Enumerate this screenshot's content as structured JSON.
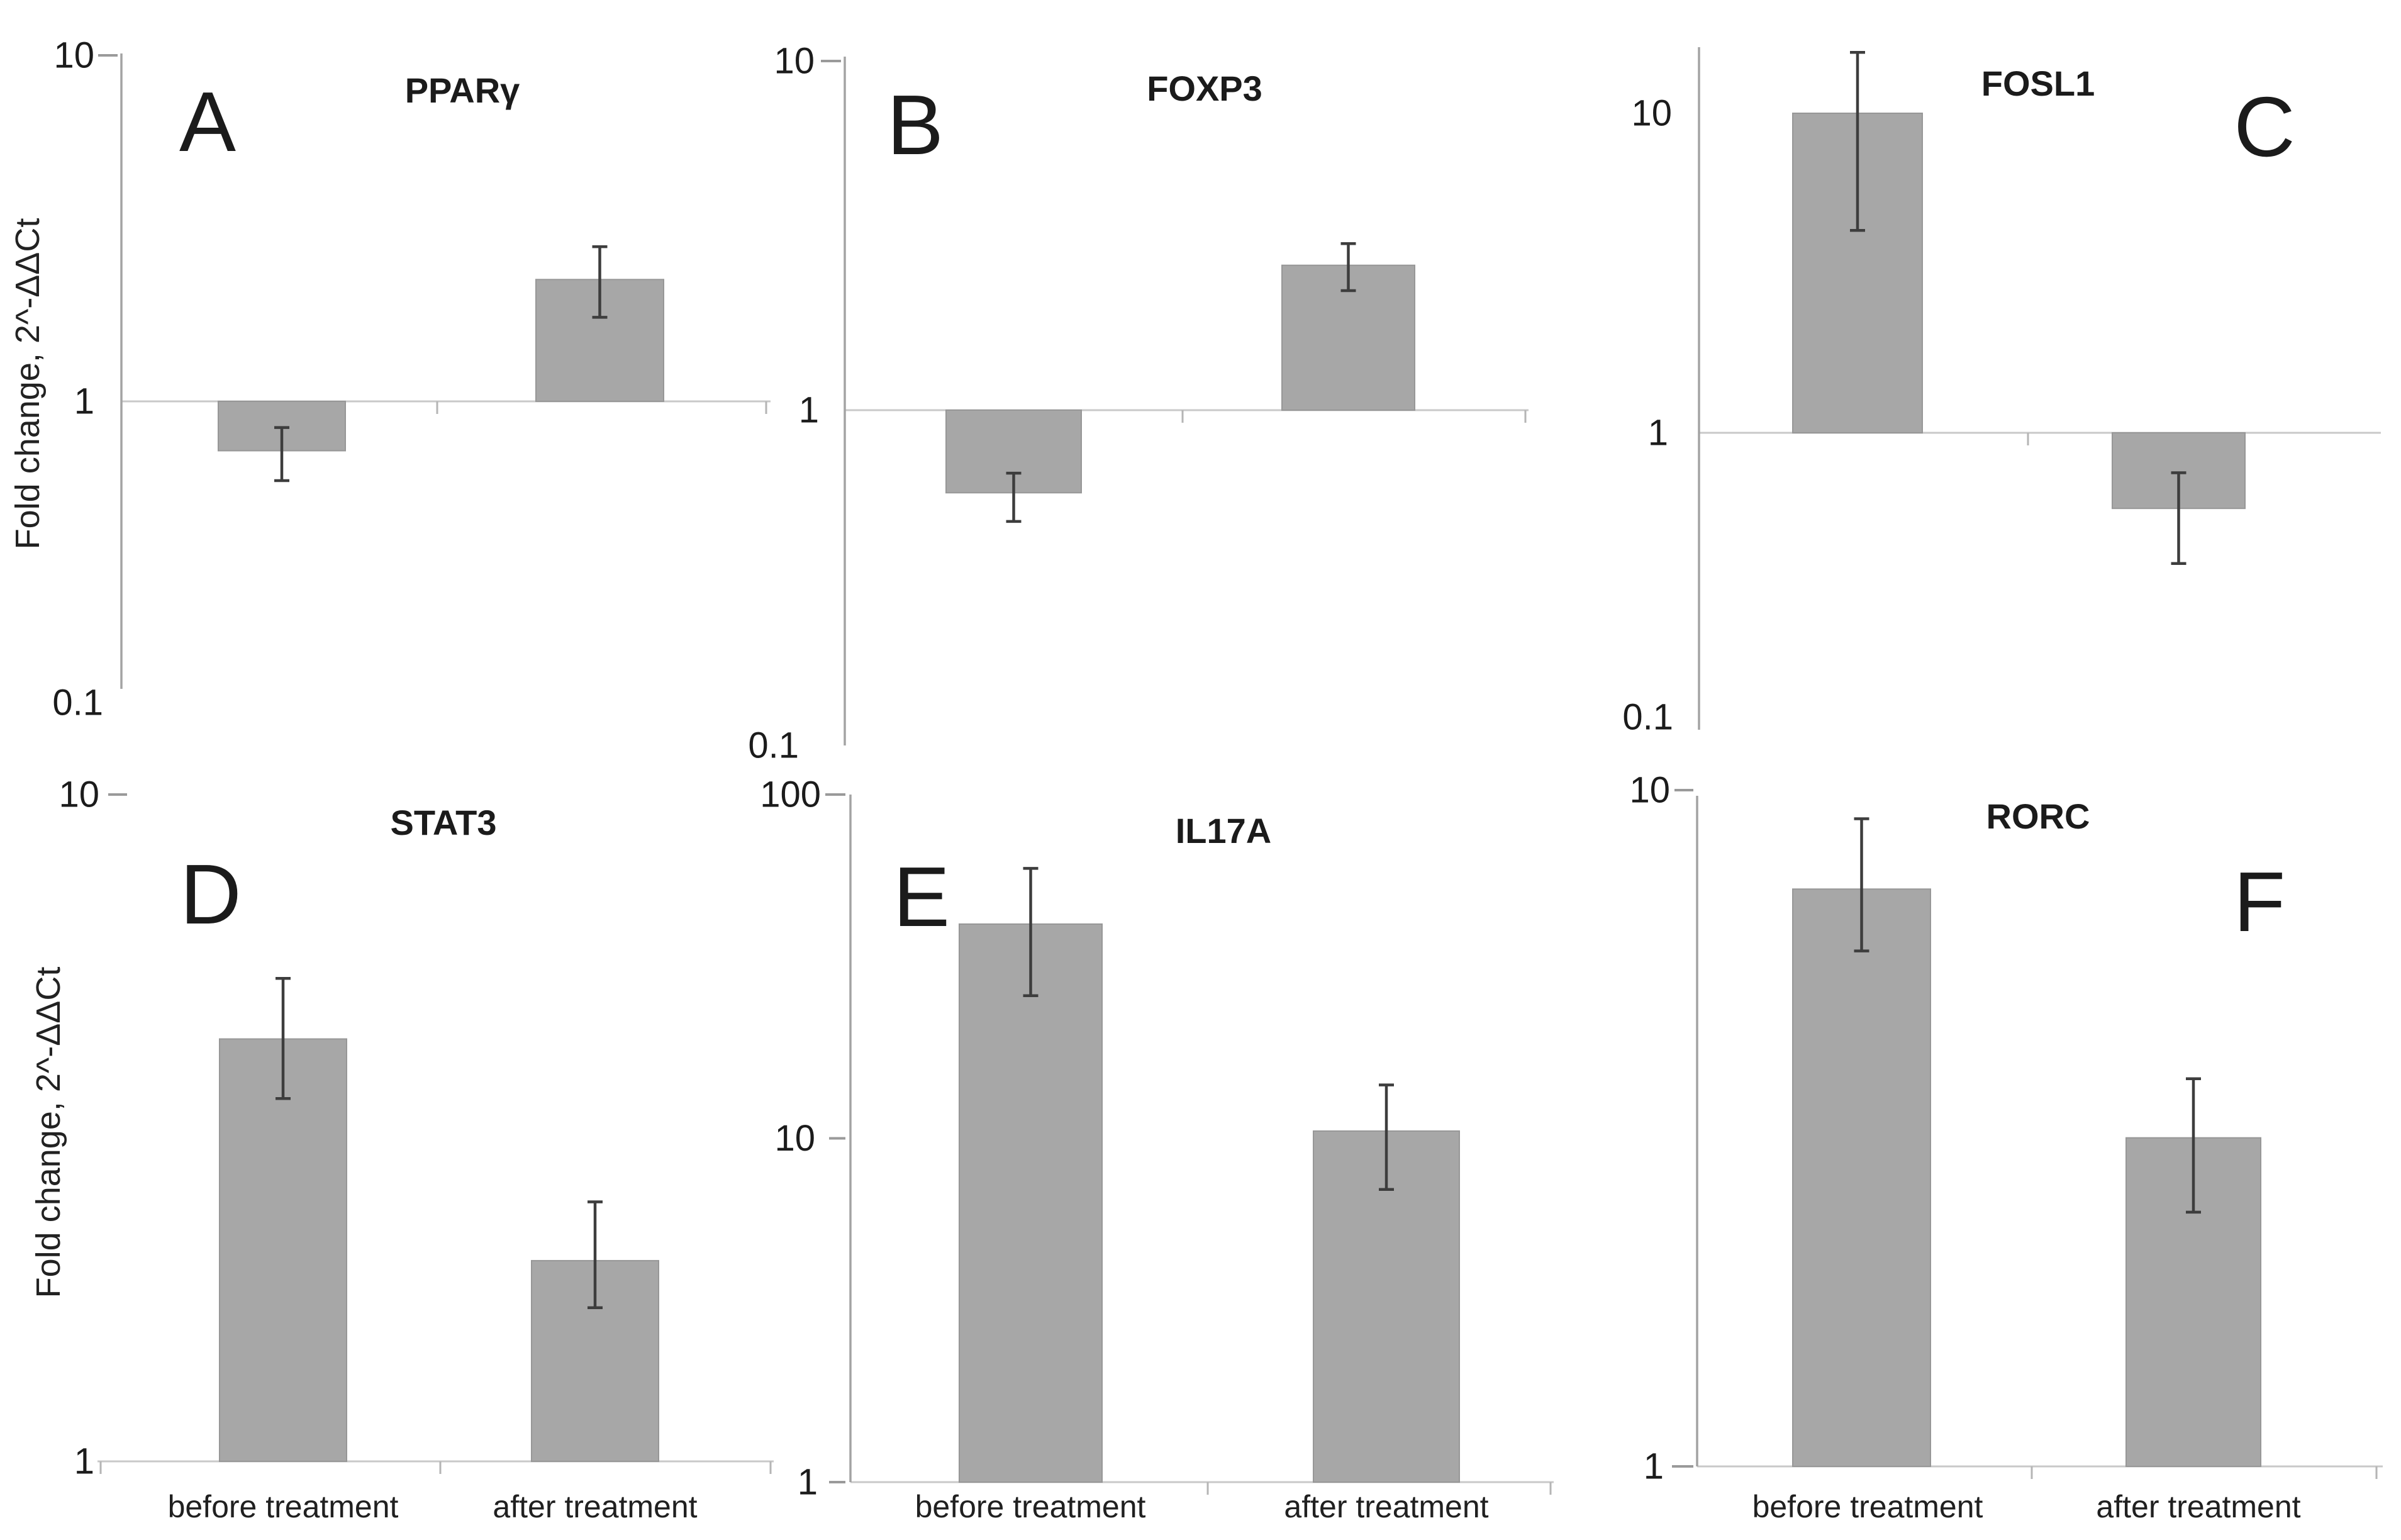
{
  "figure": {
    "background": "#ffffff",
    "bar_fill": "#a7a7a7",
    "bar_border": "#979797",
    "error_color": "#3d3d3d",
    "axis_color": "#a3a3a3",
    "baseline_color": "#c9c9c9",
    "tick_dash_color": "#9a9a9a",
    "minor_tick_color": "#b5b5b5",
    "y_axis_label": "Fold change, 2^-ΔΔCt",
    "categories": [
      "before treatment",
      "after treatment"
    ]
  },
  "chart_data": [
    {
      "type": "bar",
      "panel_letter": "A",
      "title": "PPARγ",
      "ylabel": "Fold change, 2^-ΔΔCt",
      "yscale": "log",
      "ylim": [
        0.1,
        10
      ],
      "yticks": [
        {
          "label": "10",
          "value": 10
        },
        {
          "label": "1",
          "value": 1
        },
        {
          "label": "0.1",
          "value": 0.1
        }
      ],
      "categories": [
        "before treatment",
        "after treatment"
      ],
      "values": [
        0.72,
        2.25
      ],
      "error_low": [
        0.59,
        1.75
      ],
      "error_high": [
        0.84,
        2.8
      ],
      "x_labels_visible": false
    },
    {
      "type": "bar",
      "panel_letter": "B",
      "title": "FOXP3",
      "ylabel": "",
      "yscale": "log",
      "ylim": [
        0.1,
        10
      ],
      "yticks": [
        {
          "label": "10",
          "value": 10
        },
        {
          "label": "1",
          "value": 1
        },
        {
          "label": "0.1",
          "value": 0.1
        }
      ],
      "categories": [
        "before treatment",
        "after treatment"
      ],
      "values": [
        0.58,
        2.6
      ],
      "error_low": [
        0.48,
        2.2
      ],
      "error_high": [
        0.66,
        3.0
      ],
      "x_labels_visible": false
    },
    {
      "type": "bar",
      "panel_letter": "C",
      "title": "FOSL1",
      "ylabel": "",
      "yscale": "log",
      "ylim": [
        0.1,
        16
      ],
      "yticks": [
        {
          "label": "10",
          "value": 10
        },
        {
          "label": "1",
          "value": 1
        },
        {
          "label": "0.1",
          "value": 0.1
        }
      ],
      "categories": [
        "before treatment",
        "after treatment"
      ],
      "values": [
        10,
        0.58
      ],
      "error_low": [
        4.3,
        0.39
      ],
      "error_high": [
        15.5,
        0.75
      ],
      "x_labels_visible": false
    },
    {
      "type": "bar",
      "panel_letter": "D",
      "title": "STAT3",
      "ylabel": "Fold change, 2^-ΔΔCt",
      "yscale": "log",
      "ylim": [
        1,
        10
      ],
      "yticks": [
        {
          "label": "10",
          "value": 10
        },
        {
          "label": "1",
          "value": 1
        }
      ],
      "categories": [
        "before treatment",
        "after treatment"
      ],
      "values": [
        4.3,
        2.0
      ],
      "error_low": [
        3.5,
        1.7
      ],
      "error_high": [
        5.3,
        2.45
      ],
      "x_labels_visible": true
    },
    {
      "type": "bar",
      "panel_letter": "E",
      "title": "IL17A",
      "ylabel": "",
      "yscale": "log",
      "ylim": [
        1,
        100
      ],
      "yticks": [
        {
          "label": "100",
          "value": 100
        },
        {
          "label": "10",
          "value": 10
        },
        {
          "label": "1",
          "value": 1
        }
      ],
      "categories": [
        "before treatment",
        "after treatment"
      ],
      "values": [
        42,
        10.5
      ],
      "error_low": [
        26,
        7.1
      ],
      "error_high": [
        61,
        14.3
      ],
      "x_labels_visible": true
    },
    {
      "type": "bar",
      "panel_letter": "F",
      "title": "RORC",
      "ylabel": "",
      "yscale": "log",
      "ylim": [
        1,
        10
      ],
      "yticks": [
        {
          "label": "10",
          "value": 10
        },
        {
          "label": "1",
          "value": 1
        }
      ],
      "categories": [
        "before treatment",
        "after treatment"
      ],
      "values": [
        7.3,
        3.1
      ],
      "error_low": [
        5.9,
        2.4
      ],
      "error_high": [
        9.3,
        3.8
      ],
      "x_labels_visible": true
    }
  ]
}
